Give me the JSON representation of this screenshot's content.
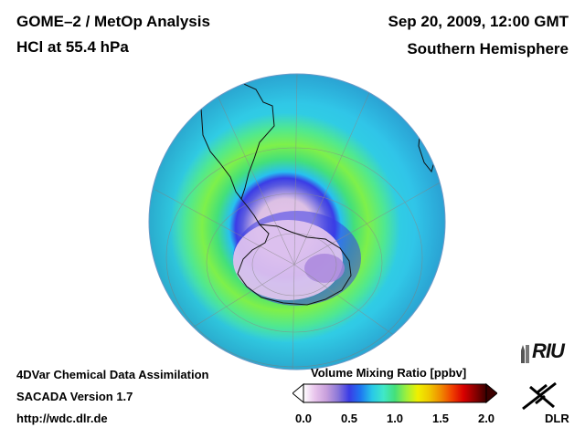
{
  "header": {
    "title_left_1": "GOME–2 / MetOp Analysis",
    "title_left_2": "HCl at 55.4 hPa",
    "title_right_1": "Sep 20, 2009, 12:00 GMT",
    "title_right_2": "Southern Hemisphere"
  },
  "footer": {
    "line1": "4DVar Chemical Data Assimilation",
    "line2": "SACADA Version 1.7",
    "line3": "http://wdc.dlr.de"
  },
  "colorbar": {
    "title": "Volume Mixing Ratio [ppbv]",
    "ticks": [
      "0.0",
      "0.5",
      "1.0",
      "1.5",
      "2.0"
    ],
    "colors": [
      "#ffffff",
      "#e8c4ec",
      "#c8a0dc",
      "#8c78d8",
      "#3a3ce6",
      "#1e78f0",
      "#28c8e8",
      "#40e8c8",
      "#44e07a",
      "#9ef03c",
      "#f0f000",
      "#f0c800",
      "#f08c00",
      "#f04000",
      "#d80000",
      "#8c0000",
      "#3c0000"
    ]
  },
  "logos": {
    "riu": "RIU",
    "dlr": "DLR"
  },
  "map": {
    "projection": "orthographic",
    "pole": "South Pole",
    "variable": "HCl",
    "regions": [
      "South America",
      "Antarctica",
      "Antarctic Peninsula"
    ]
  }
}
